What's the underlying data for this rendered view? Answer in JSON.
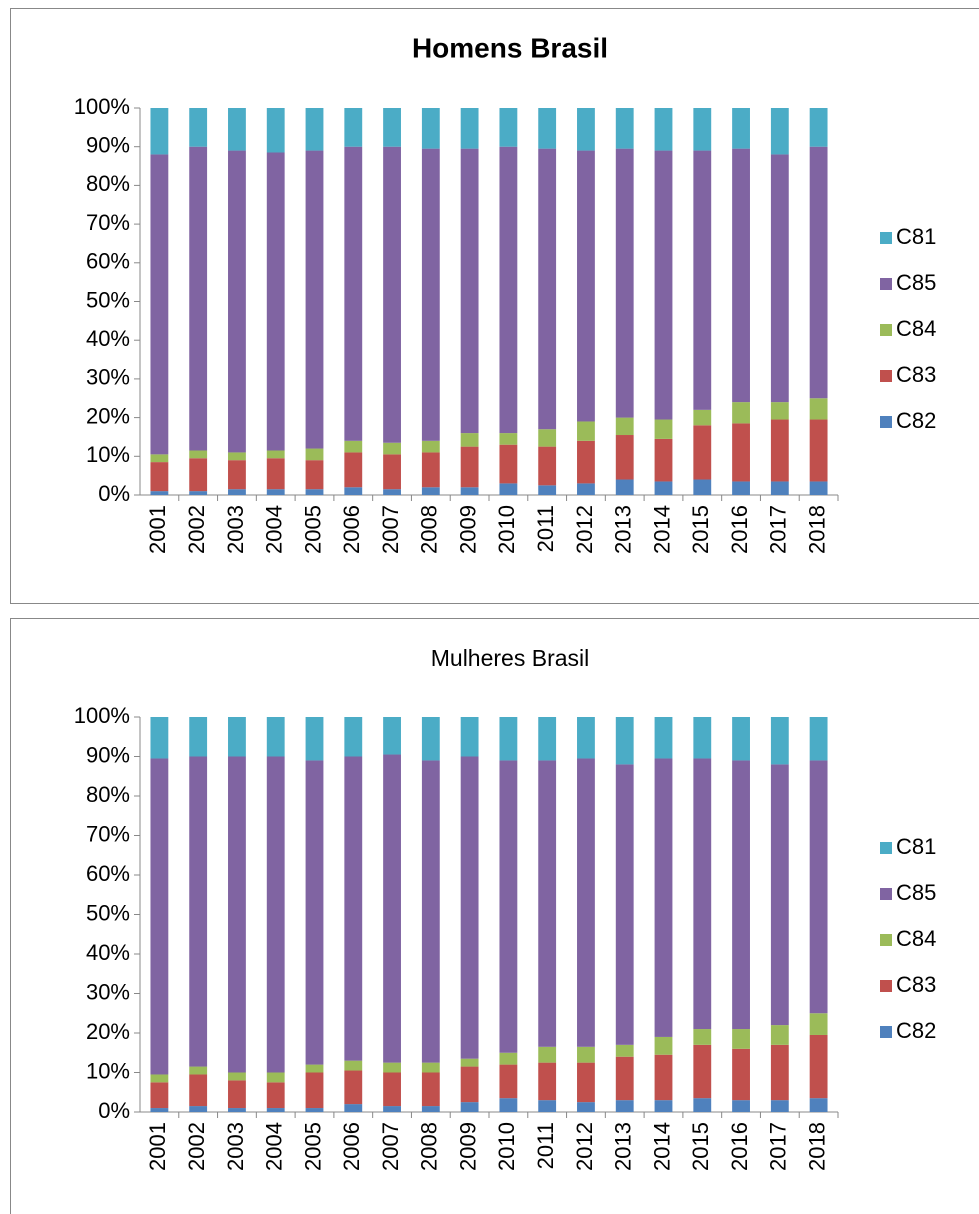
{
  "chart_data": [
    {
      "type": "bar",
      "stacked": true,
      "title": "Homens Brasil",
      "title_bold": true,
      "categories": [
        "2001",
        "2002",
        "2003",
        "2004",
        "2005",
        "2006",
        "2007",
        "2008",
        "2009",
        "2010",
        "2011",
        "2012",
        "2013",
        "2014",
        "2015",
        "2016",
        "2017",
        "2018"
      ],
      "series": [
        {
          "name": "C82",
          "color": "#4f81bd",
          "values": [
            1,
            1,
            1.5,
            1.5,
            1.5,
            2,
            1.5,
            2,
            2,
            3,
            2.5,
            3,
            4,
            3.5,
            4,
            3.5,
            3.5,
            3.5
          ]
        },
        {
          "name": "C83",
          "color": "#c0504d",
          "values": [
            7.5,
            8.5,
            7.5,
            8,
            7.5,
            9,
            9,
            9,
            10.5,
            10,
            10,
            11,
            11.5,
            11,
            14,
            15,
            16,
            16
          ]
        },
        {
          "name": "C84",
          "color": "#9bbb59",
          "values": [
            2,
            2,
            2,
            2,
            3,
            3,
            3,
            3,
            3.5,
            3,
            4.5,
            5,
            4.5,
            5,
            4,
            5.5,
            4.5,
            5.5
          ]
        },
        {
          "name": "C85",
          "color": "#8064a2",
          "values": [
            77.5,
            78.5,
            78,
            77,
            77,
            76,
            76.5,
            75.5,
            73.5,
            74,
            72.5,
            70,
            69.5,
            69.5,
            67,
            65.5,
            64,
            65
          ]
        },
        {
          "name": "C81",
          "color": "#4bacc6",
          "values": [
            12,
            10,
            11,
            11.5,
            11,
            10,
            10,
            10.5,
            10.5,
            10,
            10.5,
            11,
            10.5,
            11,
            11,
            10.5,
            12,
            10
          ]
        }
      ],
      "ylim": [
        0,
        100
      ],
      "yticks": [
        {
          "value": 0,
          "label": "0%"
        },
        {
          "value": 10,
          "label": "10%"
        },
        {
          "value": 20,
          "label": "20%"
        },
        {
          "value": 30,
          "label": "30%"
        },
        {
          "value": 40,
          "label": "40%"
        },
        {
          "value": 50,
          "label": "50%"
        },
        {
          "value": 60,
          "label": "60%"
        },
        {
          "value": 70,
          "label": "70%"
        },
        {
          "value": 80,
          "label": "80%"
        },
        {
          "value": 90,
          "label": "90%"
        },
        {
          "value": 100,
          "label": "100%"
        }
      ],
      "legend": "right"
    },
    {
      "type": "bar",
      "stacked": true,
      "title": "Mulheres Brasil",
      "title_bold": false,
      "categories": [
        "2001",
        "2002",
        "2003",
        "2004",
        "2005",
        "2006",
        "2007",
        "2008",
        "2009",
        "2010",
        "2011",
        "2012",
        "2013",
        "2014",
        "2015",
        "2016",
        "2017",
        "2018"
      ],
      "series": [
        {
          "name": "C82",
          "color": "#4f81bd",
          "values": [
            1,
            1.5,
            1,
            1,
            1,
            2,
            1.5,
            1.5,
            2.5,
            3.5,
            3,
            2.5,
            3,
            3,
            3.5,
            3,
            3,
            3.5
          ]
        },
        {
          "name": "C83",
          "color": "#c0504d",
          "values": [
            6.5,
            8,
            7,
            6.5,
            9,
            8.5,
            8.5,
            8.5,
            9,
            8.5,
            9.5,
            10,
            11,
            11.5,
            13.5,
            13,
            14,
            16
          ]
        },
        {
          "name": "C84",
          "color": "#9bbb59",
          "values": [
            2,
            2,
            2,
            2.5,
            2,
            2.5,
            2.5,
            2.5,
            2,
            3,
            4,
            4,
            3,
            4.5,
            4,
            5,
            5,
            5.5
          ]
        },
        {
          "name": "C85",
          "color": "#8064a2",
          "values": [
            80,
            78.5,
            80,
            80,
            77,
            77,
            78,
            76.5,
            76.5,
            74,
            72.5,
            73,
            71,
            70.5,
            68.5,
            68,
            66,
            64
          ]
        },
        {
          "name": "C81",
          "color": "#4bacc6",
          "values": [
            10.5,
            10,
            10,
            10,
            11,
            10,
            9.5,
            11,
            10,
            11,
            11,
            10.5,
            12,
            10.5,
            10.5,
            11,
            12,
            11
          ]
        }
      ],
      "ylim": [
        0,
        100
      ],
      "yticks": [
        {
          "value": 0,
          "label": "0%"
        },
        {
          "value": 10,
          "label": "10%"
        },
        {
          "value": 20,
          "label": "20%"
        },
        {
          "value": 30,
          "label": "30%"
        },
        {
          "value": 40,
          "label": "40%"
        },
        {
          "value": 50,
          "label": "50%"
        },
        {
          "value": 60,
          "label": "60%"
        },
        {
          "value": 70,
          "label": "70%"
        },
        {
          "value": 80,
          "label": "80%"
        },
        {
          "value": 90,
          "label": "90%"
        },
        {
          "value": 100,
          "label": "100%"
        }
      ],
      "legend": "right"
    }
  ]
}
